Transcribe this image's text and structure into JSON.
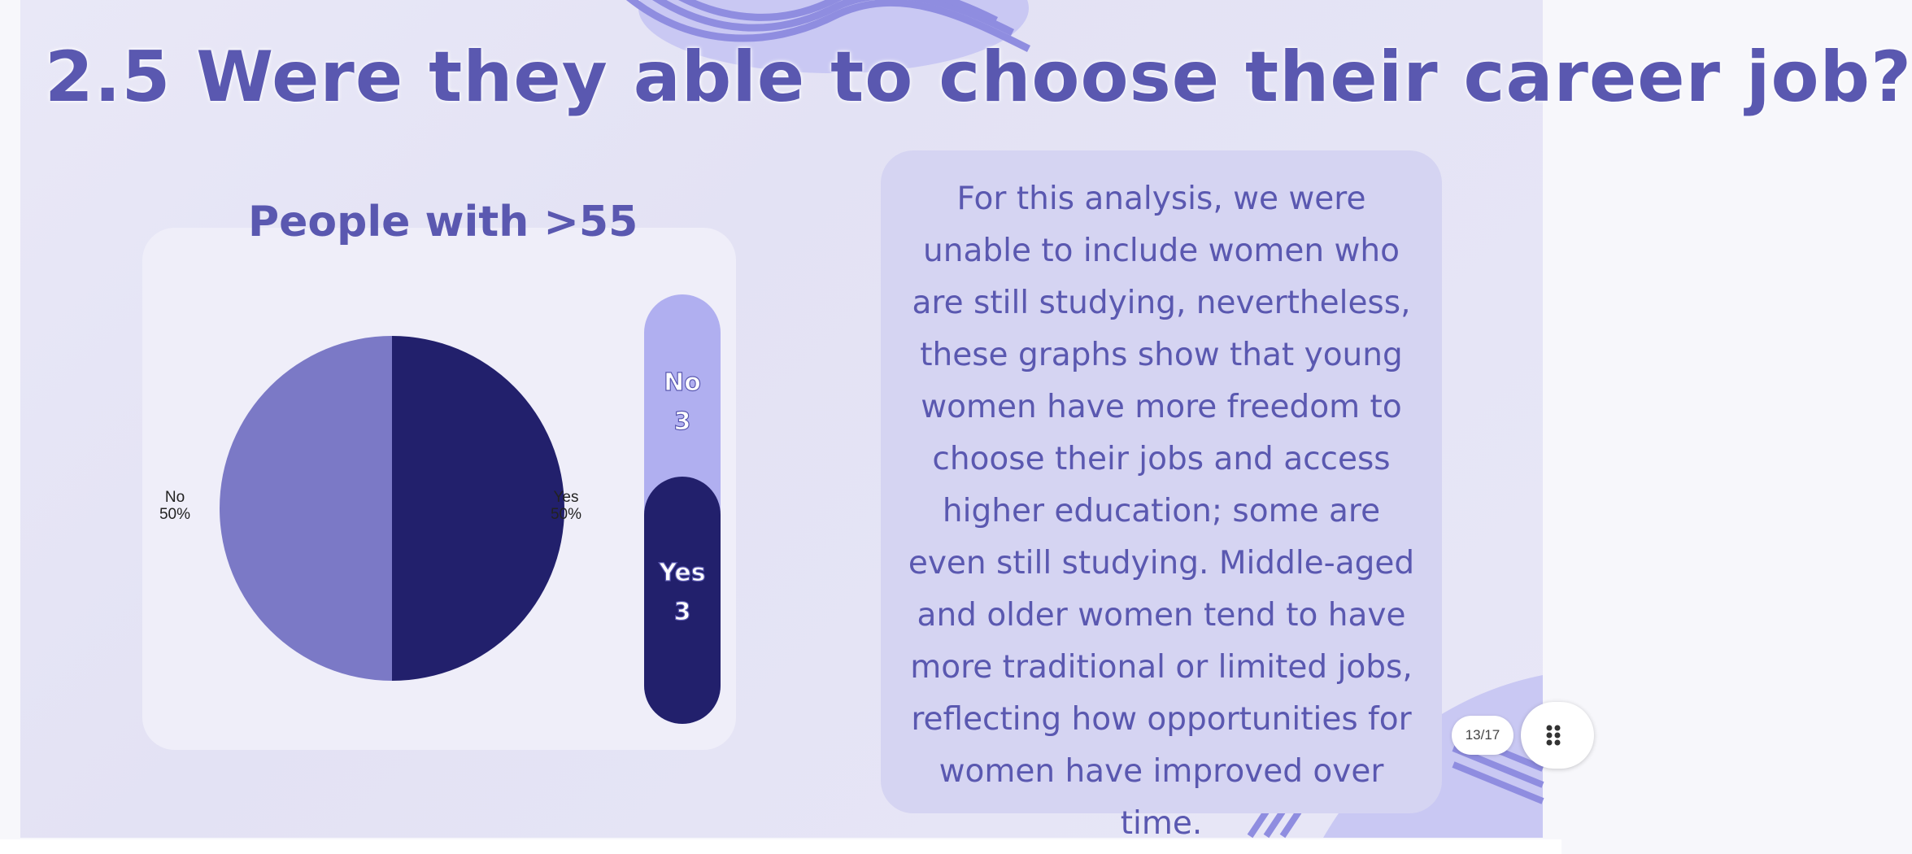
{
  "slide": {
    "title": "2.5 Were they able to choose their career job?",
    "page_indicator": "13/17",
    "description": "For this analysis, we were unable to include women who are still studying, nevertheless, these graphs show that young women have more freedom to choose their jobs and access higher education; some are even still studying. Middle-aged and older women tend to have more traditional or limited jobs, reflecting how opportunities for women have improved over time."
  },
  "colors": {
    "yes": "#22206c",
    "no": "#7b79c6",
    "bar_no": "#b0aff0",
    "accent": "#5a58b0"
  },
  "icons": {
    "menu": "grip-dots-icon"
  },
  "chart_data": {
    "type": "pie",
    "title": "People with >55",
    "slices": [
      {
        "label": "Yes",
        "value": 3,
        "percent": "50%"
      },
      {
        "label": "No",
        "value": 3,
        "percent": "50%"
      }
    ]
  }
}
